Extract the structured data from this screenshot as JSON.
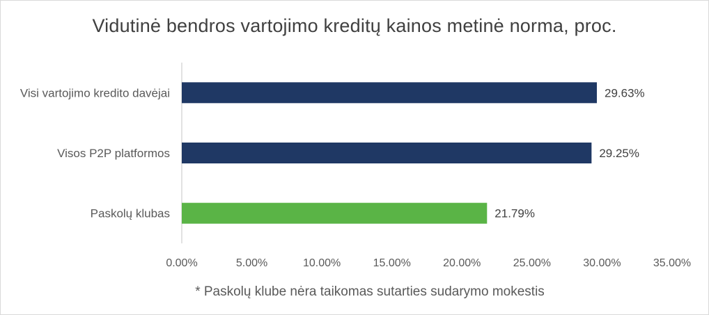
{
  "chart_data": {
    "type": "bar",
    "orientation": "horizontal",
    "title": "Vidutinė bendros vartojimo kreditų kainos metinė norma, proc.",
    "categories": [
      "Visi vartojimo kredito davėjai",
      "Visos P2P platformos",
      "Paskolų klubas"
    ],
    "values": [
      29.63,
      29.25,
      21.79
    ],
    "value_labels": [
      "29.63%",
      "29.25%",
      "21.79%"
    ],
    "bar_colors": [
      "#1f3864",
      "#1f3864",
      "#5ab446"
    ],
    "xlim": [
      0,
      35
    ],
    "x_ticks": [
      0,
      5,
      10,
      15,
      20,
      25,
      30,
      35
    ],
    "x_tick_labels": [
      "0.00%",
      "5.00%",
      "10.00%",
      "15.00%",
      "20.00%",
      "25.00%",
      "30.00%",
      "35.00%"
    ],
    "xlabel": "",
    "ylabel": "",
    "grid": false,
    "legend": "none",
    "footnote": "* Paskolų klube nėra taikomas sutarties sudarymo mokestis"
  }
}
